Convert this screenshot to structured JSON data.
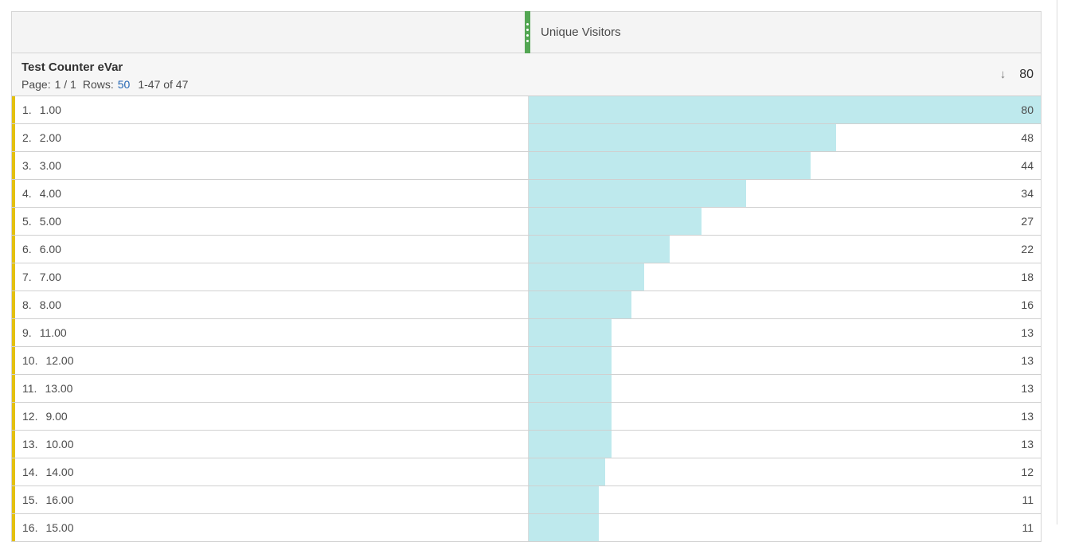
{
  "table": {
    "column_header": {
      "metric_label": "Unique Visitors"
    },
    "dimension_header": {
      "title": "Test Counter eVar",
      "page_label": "Page:",
      "page_value": "1 / 1",
      "rows_label": "Rows:",
      "rows_per_page": "50",
      "range_text": "1-47 of 47"
    },
    "total": {
      "sort_icon": "↓",
      "value": "80"
    },
    "max_value": 80,
    "rows": [
      {
        "index": "1.",
        "label": "1.00",
        "value": 80
      },
      {
        "index": "2.",
        "label": "2.00",
        "value": 48
      },
      {
        "index": "3.",
        "label": "3.00",
        "value": 44
      },
      {
        "index": "4.",
        "label": "4.00",
        "value": 34
      },
      {
        "index": "5.",
        "label": "5.00",
        "value": 27
      },
      {
        "index": "6.",
        "label": "6.00",
        "value": 22
      },
      {
        "index": "7.",
        "label": "7.00",
        "value": 18
      },
      {
        "index": "8.",
        "label": "8.00",
        "value": 16
      },
      {
        "index": "9.",
        "label": "11.00",
        "value": 13
      },
      {
        "index": "10.",
        "label": "12.00",
        "value": 13
      },
      {
        "index": "11.",
        "label": "13.00",
        "value": 13
      },
      {
        "index": "12.",
        "label": "9.00",
        "value": 13
      },
      {
        "index": "13.",
        "label": "10.00",
        "value": 13
      },
      {
        "index": "14.",
        "label": "14.00",
        "value": 12
      },
      {
        "index": "15.",
        "label": "16.00",
        "value": 11
      },
      {
        "index": "16.",
        "label": "15.00",
        "value": 11
      }
    ]
  },
  "colors": {
    "bar_fill": "#bee9ed",
    "dimension_accent": "#e3c010",
    "metric_handle": "#53a653",
    "link_blue": "#2567b4",
    "header_bg": "#f4f4f4"
  }
}
